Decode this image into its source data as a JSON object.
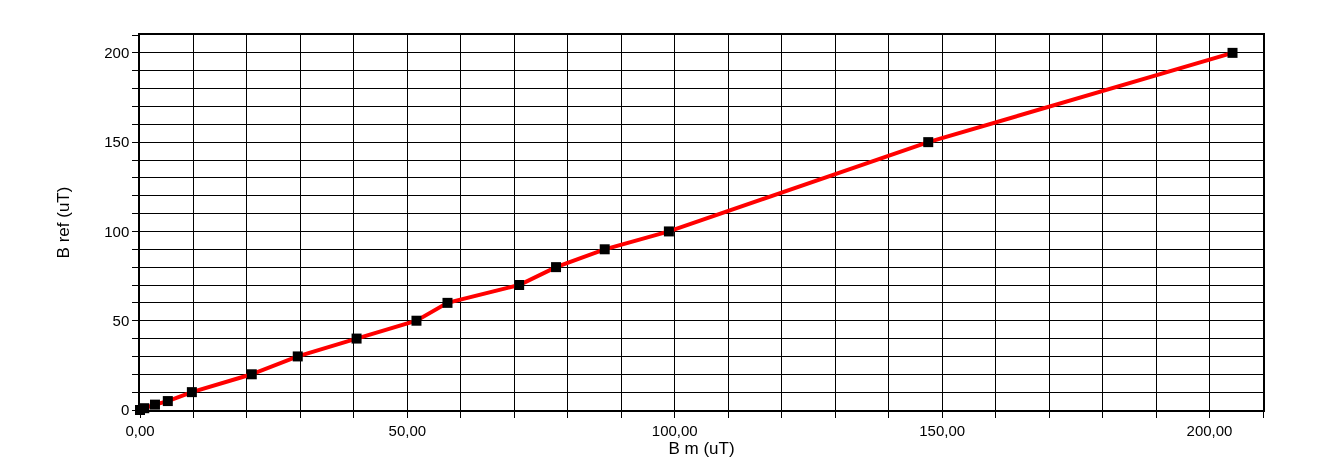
{
  "chart_data": {
    "type": "line",
    "xlabel": "B m (uT)",
    "ylabel": "B ref (uT)",
    "x": [
      0,
      0.8,
      2.8,
      5.2,
      9.7,
      20.9,
      29.5,
      40.5,
      51.7,
      57.5,
      70.9,
      77.8,
      86.9,
      98.9,
      147.4,
      204.3
    ],
    "series": [
      {
        "color": "#ff0000",
        "colors": [
          "#000000",
          "#000000",
          "#000000",
          "#000000",
          "#000000",
          "#000000",
          "#000000",
          "#000000",
          "#000000",
          "#000000",
          "#000000",
          "#000000",
          "#000000",
          "#000000",
          "#000000",
          "#000000"
        ],
        "values": [
          0,
          1,
          3,
          5,
          10,
          20,
          30,
          40,
          50,
          60,
          70,
          80,
          90,
          100,
          150,
          200
        ]
      }
    ],
    "xlim": [
      0,
      210
    ],
    "ylim": [
      0,
      210
    ],
    "xticks": [
      {
        "value": 0,
        "label": "0,00"
      },
      {
        "value": 10,
        "label": null
      },
      {
        "value": 20,
        "label": null
      },
      {
        "value": 30,
        "label": null
      },
      {
        "value": 40,
        "label": null
      },
      {
        "value": 50,
        "label": "50,00"
      },
      {
        "value": 60,
        "label": null
      },
      {
        "value": 70,
        "label": null
      },
      {
        "value": 80,
        "label": null
      },
      {
        "value": 90,
        "label": null
      },
      {
        "value": 100,
        "label": "100,00"
      },
      {
        "value": 110,
        "label": null
      },
      {
        "value": 120,
        "label": null
      },
      {
        "value": 130,
        "label": null
      },
      {
        "value": 140,
        "label": null
      },
      {
        "value": 150,
        "label": "150,00"
      },
      {
        "value": 160,
        "label": null
      },
      {
        "value": 170,
        "label": null
      },
      {
        "value": 180,
        "label": null
      },
      {
        "value": 190,
        "label": null
      },
      {
        "value": 200,
        "label": "200,00"
      },
      {
        "value": 210,
        "label": null
      }
    ],
    "yticks": [
      0,
      {
        "value": 10,
        "label": null
      },
      {
        "value": 20,
        "label": null
      },
      {
        "value": 30,
        "label": null
      },
      {
        "value": 40,
        "label": null
      },
      50,
      {
        "value": 60,
        "label": null
      },
      {
        "value": 70,
        "label": null
      },
      {
        "value": 80,
        "label": null
      },
      {
        "value": 90,
        "label": null
      },
      100,
      {
        "value": 110,
        "label": null
      },
      {
        "value": 120,
        "label": null
      },
      {
        "value": 130,
        "label": null
      },
      {
        "value": 140,
        "label": null
      },
      150,
      {
        "value": 160,
        "label": null
      },
      {
        "value": 170,
        "label": null
      },
      {
        "value": 180,
        "label": null
      },
      {
        "value": 190,
        "label": null
      },
      200,
      {
        "value": 210,
        "label": null
      }
    ],
    "grid": true,
    "marker": "square",
    "line_style": "solid"
  }
}
